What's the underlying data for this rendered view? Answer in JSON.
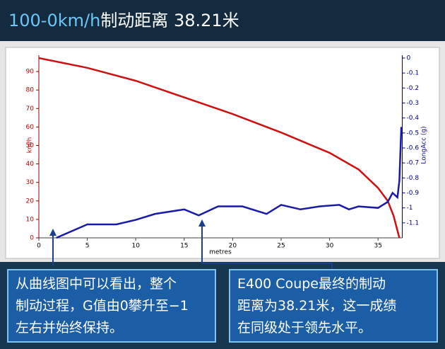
{
  "chart_data": {
    "type": "line",
    "title_highlight": "100-0km/h",
    "title": "制动距离 38.21米",
    "xlabel": "metres",
    "ylabel": "km/h",
    "y2label": "LongAcc (g)",
    "xlim": [
      0,
      37.5
    ],
    "xticks": [
      0,
      5,
      10,
      15,
      20,
      25,
      30,
      35
    ],
    "ylim": [
      0,
      97.3
    ],
    "yticks": [
      0,
      10,
      20,
      30,
      40,
      50,
      60,
      70,
      80,
      90
    ],
    "y2lim": [
      -1.2,
      0
    ],
    "y2ticks": [
      0,
      -0.1,
      -0.2,
      -0.3,
      -0.4,
      -0.5,
      -0.6,
      -0.7,
      -0.8,
      -0.9,
      -1,
      -1.1
    ],
    "series": [
      {
        "name": "km/h",
        "color": "#d01010",
        "axis": "y",
        "x": [
          0,
          5,
          10,
          15,
          20,
          25,
          30,
          33,
          35,
          36,
          36.6,
          37.2
        ],
        "values": [
          97.3,
          92,
          85,
          76,
          67,
          57,
          46,
          37,
          27,
          20,
          12,
          0
        ]
      },
      {
        "name": "LongAcc (g)",
        "color": "#1a1aa8",
        "axis": "y2",
        "x": [
          1.8,
          5,
          8,
          10,
          12,
          15,
          16.5,
          18.5,
          21,
          23.5,
          25,
          27,
          29,
          31,
          32,
          33,
          35,
          36,
          36.5,
          37,
          37.2,
          37.4
        ],
        "values": [
          -1.2,
          -1.11,
          -1.11,
          -1.08,
          -1.04,
          -1.01,
          -1.05,
          -0.99,
          -0.99,
          -1.04,
          -0.98,
          -1.01,
          -0.99,
          -0.98,
          -1.01,
          -0.99,
          -1,
          -0.96,
          -0.9,
          -0.93,
          -0.82,
          -0.46
        ]
      }
    ]
  },
  "notes": [
    {
      "lines": [
        "从曲线图中可以看出，整个",
        "制动过程，G值由0攀升至−1",
        "左右并始终保持。"
      ]
    },
    {
      "lines": [
        "E400 Coupe最终的制动",
        "距离为38.21米，这一成绩",
        "在同级处于领先水平。"
      ]
    }
  ]
}
